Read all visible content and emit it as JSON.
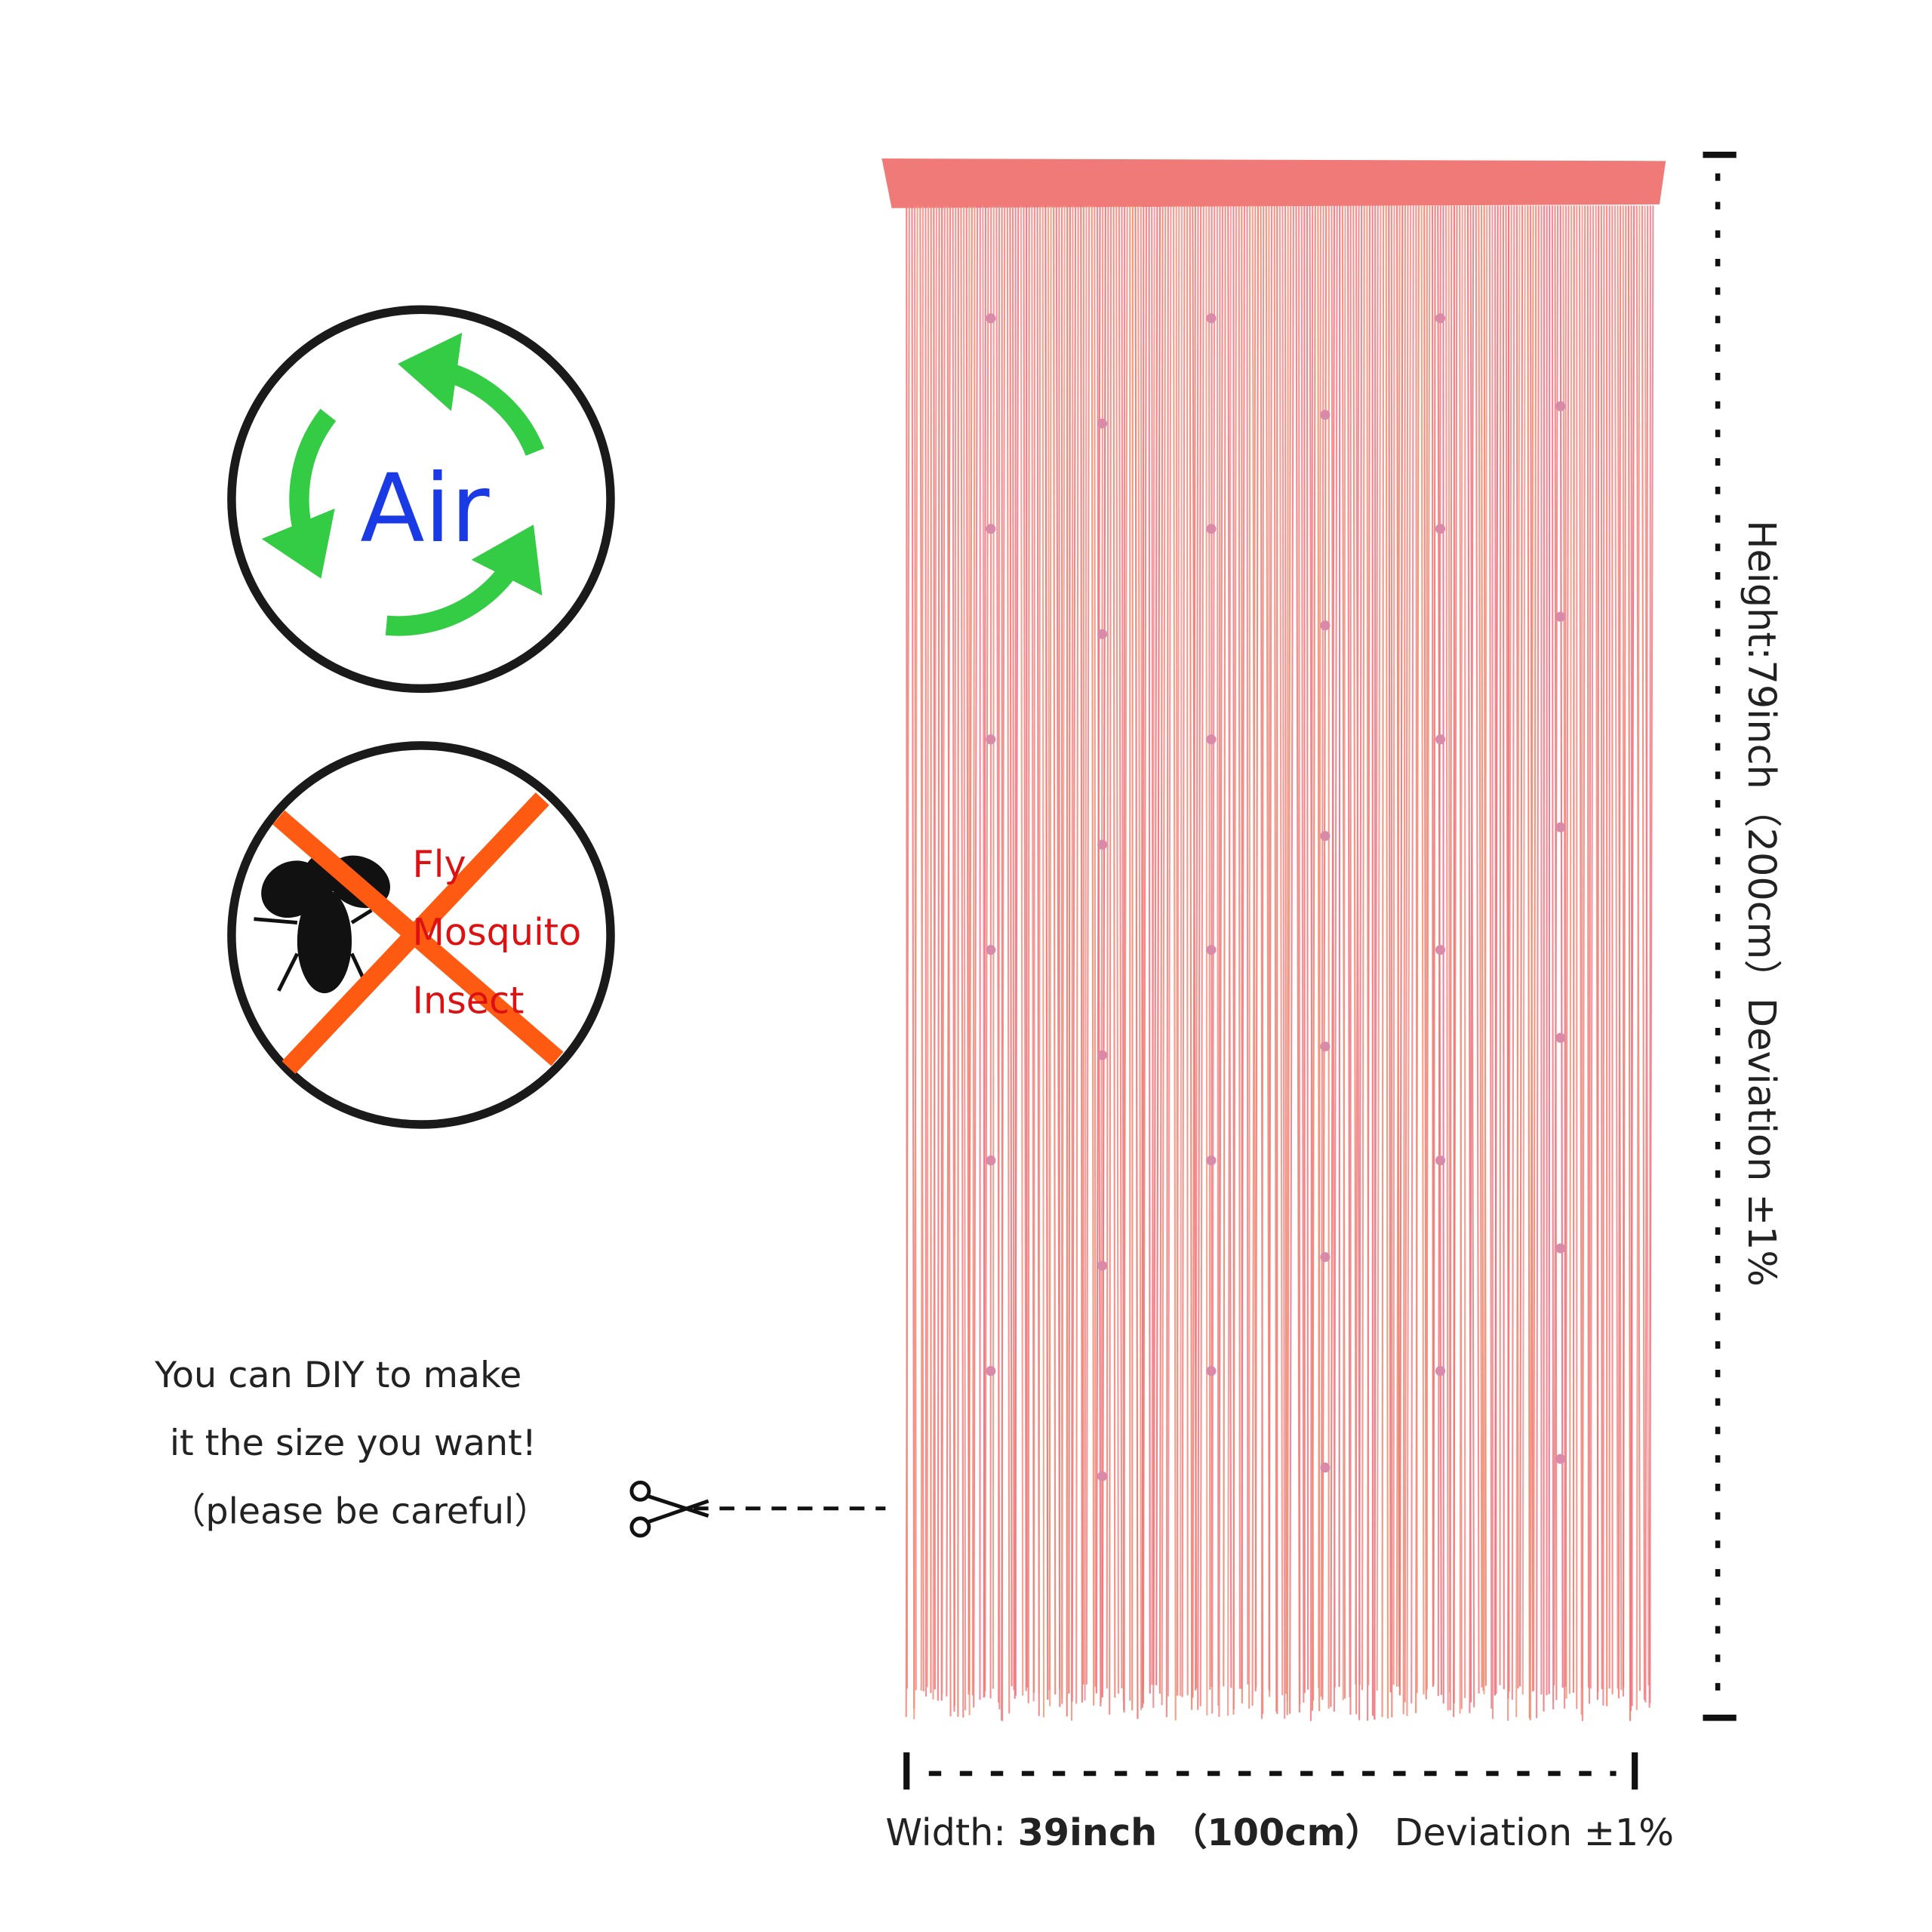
{
  "features": {
    "airflow": {
      "label": "Air"
    },
    "insects": {
      "labels": [
        "Fly",
        "Mosquito",
        "Insect"
      ]
    }
  },
  "diy_note": {
    "lines": [
      "You can DIY to make",
      "it the size you want!",
      "（please be careful）"
    ]
  },
  "dimensions": {
    "height": "Height:79inch（200cm）Deviation ±1%",
    "width": {
      "label": "Width:",
      "size": "39inch （100cm）",
      "deviation": "Deviation ±1%"
    }
  }
}
